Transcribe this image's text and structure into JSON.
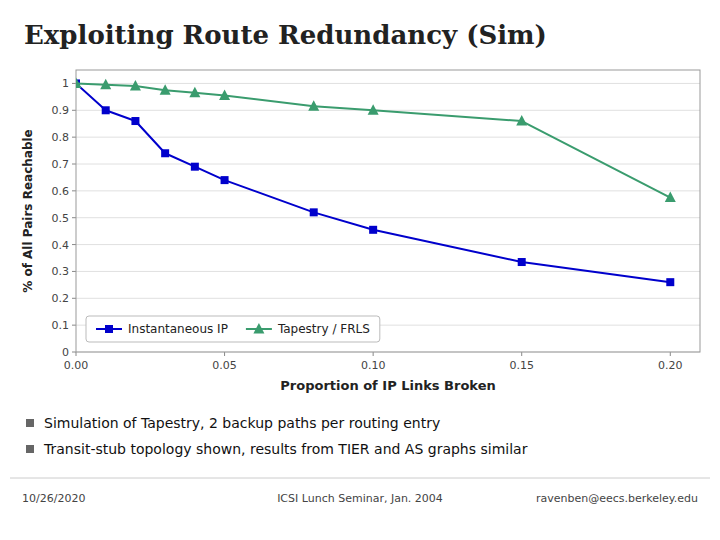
{
  "chart_data": {
    "type": "line",
    "title": "Exploiting Route Redundancy (Sim)",
    "x_label": "Proportion of IP Links Broken",
    "y_label": "% of All Pairs Reachable",
    "x": [
      0,
      0.01,
      0.02,
      0.03,
      0.04,
      0.05,
      0.08,
      0.1,
      0.15,
      0.2
    ],
    "series": [
      {
        "name": "Instantaneous IP",
        "color": "#0000cc",
        "marker": "square",
        "values": [
          1.0,
          0.9,
          0.86,
          0.74,
          0.69,
          0.64,
          0.52,
          0.455,
          0.335,
          0.26
        ]
      },
      {
        "name": "Tapestry / FRLS",
        "color": "#3a9c6e",
        "marker": "triangle",
        "values": [
          1.0,
          0.995,
          0.99,
          0.975,
          0.965,
          0.955,
          0.915,
          0.9,
          0.86,
          0.575
        ]
      }
    ],
    "xlim": [
      0,
      0.21
    ],
    "ylim": [
      0,
      1.05
    ],
    "xticks": [
      {
        "value": 0,
        "label": "0.00"
      },
      0.05,
      {
        "value": 0.1,
        "label": "0.10"
      },
      0.15,
      {
        "value": 0.2,
        "label": "0.20"
      }
    ],
    "yticks": [
      0,
      0.1,
      0.2,
      0.3,
      0.4,
      0.5,
      0.6,
      0.7,
      0.8,
      0.9,
      1
    ],
    "grid": true,
    "legend": "lower left",
    "annotations": [
      "Simulation of Tapestry, 2 backup paths per routing entry",
      "Transit-stub topology shown, results from TIER and AS graphs similar"
    ],
    "footer": [
      "10/26/2020",
      "ICSI Lunch Seminar, Jan. 2004",
      "ravenben@eecs.berkeley.edu"
    ]
  }
}
